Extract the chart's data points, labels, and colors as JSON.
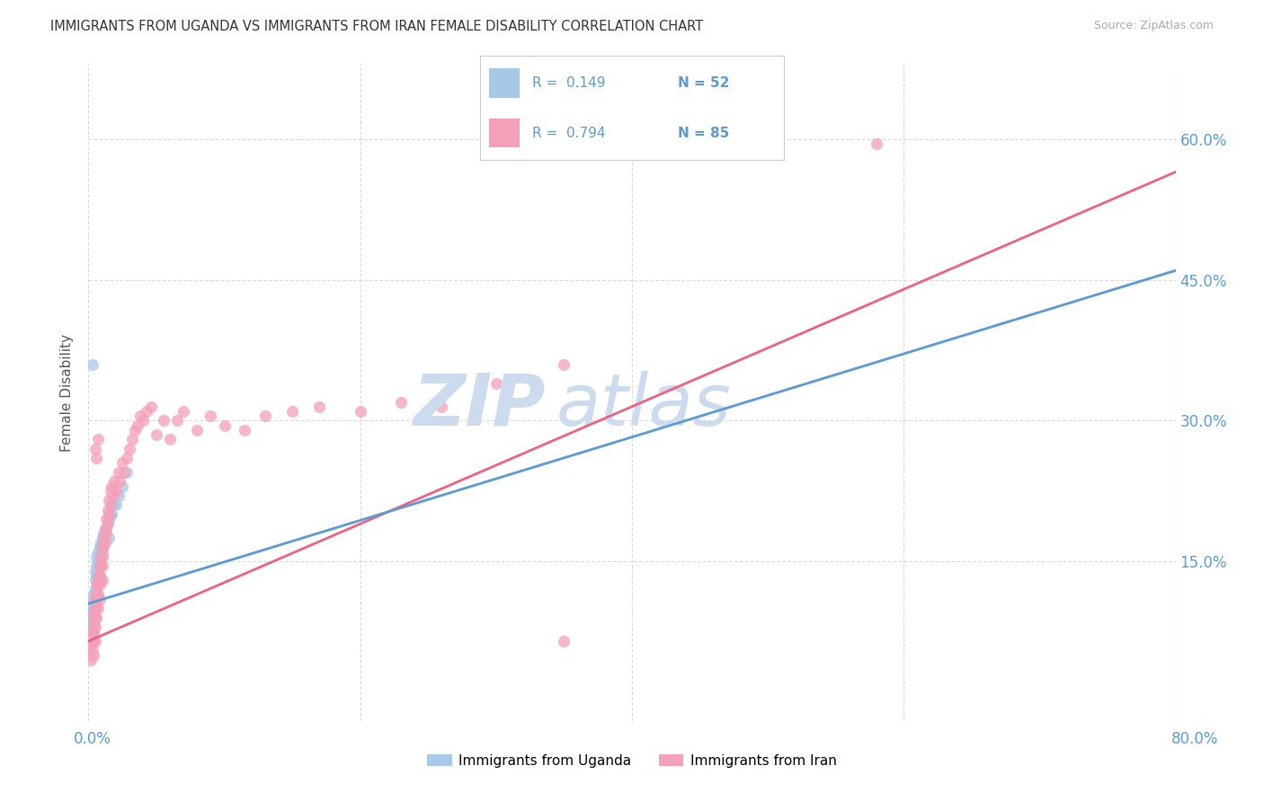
{
  "title": "IMMIGRANTS FROM UGANDA VS IMMIGRANTS FROM IRAN FEMALE DISABILITY CORRELATION CHART",
  "source": "Source: ZipAtlas.com",
  "ylabel": "Female Disability",
  "xlim": [
    0.0,
    0.8
  ],
  "ylim": [
    -0.02,
    0.68
  ],
  "ytick_labels": [
    "15.0%",
    "30.0%",
    "45.0%",
    "60.0%"
  ],
  "ytick_values": [
    0.15,
    0.3,
    0.45,
    0.6
  ],
  "uganda_color": "#a8c8e8",
  "iran_color": "#f4a0b8",
  "uganda_line_color": "#5b9bd5",
  "iran_line_color": "#f06080",
  "uganda_R": 0.149,
  "uganda_N": 52,
  "iran_R": 0.794,
  "iran_N": 85,
  "watermark_color": "#ccdcee",
  "background_color": "#ffffff",
  "grid_color": "#cccccc",
  "uganda_scatter_x": [
    0.001,
    0.001,
    0.002,
    0.002,
    0.002,
    0.003,
    0.003,
    0.003,
    0.003,
    0.004,
    0.004,
    0.004,
    0.004,
    0.004,
    0.005,
    0.005,
    0.005,
    0.005,
    0.005,
    0.005,
    0.006,
    0.006,
    0.006,
    0.006,
    0.007,
    0.007,
    0.007,
    0.007,
    0.008,
    0.008,
    0.008,
    0.008,
    0.009,
    0.009,
    0.01,
    0.01,
    0.01,
    0.011,
    0.011,
    0.012,
    0.013,
    0.014,
    0.015,
    0.016,
    0.017,
    0.018,
    0.02,
    0.022,
    0.025,
    0.028,
    0.003,
    0.015
  ],
  "uganda_scatter_y": [
    0.095,
    0.08,
    0.1,
    0.085,
    0.075,
    0.11,
    0.09,
    0.085,
    0.075,
    0.115,
    0.105,
    0.1,
    0.09,
    0.08,
    0.14,
    0.13,
    0.12,
    0.11,
    0.1,
    0.09,
    0.155,
    0.145,
    0.135,
    0.12,
    0.16,
    0.15,
    0.14,
    0.13,
    0.165,
    0.155,
    0.145,
    0.135,
    0.17,
    0.165,
    0.175,
    0.17,
    0.16,
    0.18,
    0.175,
    0.185,
    0.185,
    0.19,
    0.195,
    0.2,
    0.2,
    0.21,
    0.21,
    0.22,
    0.23,
    0.245,
    0.36,
    0.175
  ],
  "iran_scatter_x": [
    0.002,
    0.002,
    0.003,
    0.003,
    0.003,
    0.004,
    0.004,
    0.004,
    0.004,
    0.004,
    0.005,
    0.005,
    0.005,
    0.005,
    0.005,
    0.006,
    0.006,
    0.006,
    0.006,
    0.007,
    0.007,
    0.007,
    0.007,
    0.008,
    0.008,
    0.008,
    0.008,
    0.009,
    0.009,
    0.009,
    0.01,
    0.01,
    0.01,
    0.01,
    0.011,
    0.011,
    0.012,
    0.012,
    0.013,
    0.013,
    0.014,
    0.014,
    0.015,
    0.015,
    0.016,
    0.016,
    0.017,
    0.018,
    0.019,
    0.02,
    0.022,
    0.023,
    0.025,
    0.026,
    0.028,
    0.03,
    0.032,
    0.034,
    0.036,
    0.038,
    0.04,
    0.043,
    0.046,
    0.05,
    0.055,
    0.06,
    0.065,
    0.07,
    0.08,
    0.09,
    0.1,
    0.115,
    0.13,
    0.15,
    0.17,
    0.2,
    0.23,
    0.26,
    0.3,
    0.35,
    0.005,
    0.006,
    0.007,
    0.58,
    0.35
  ],
  "iran_scatter_y": [
    0.06,
    0.045,
    0.075,
    0.065,
    0.055,
    0.095,
    0.085,
    0.075,
    0.065,
    0.05,
    0.11,
    0.1,
    0.09,
    0.08,
    0.065,
    0.125,
    0.115,
    0.105,
    0.09,
    0.135,
    0.125,
    0.115,
    0.1,
    0.145,
    0.135,
    0.125,
    0.11,
    0.155,
    0.145,
    0.13,
    0.165,
    0.155,
    0.145,
    0.13,
    0.175,
    0.165,
    0.185,
    0.17,
    0.195,
    0.18,
    0.205,
    0.19,
    0.215,
    0.2,
    0.225,
    0.21,
    0.23,
    0.22,
    0.235,
    0.225,
    0.245,
    0.235,
    0.255,
    0.245,
    0.26,
    0.27,
    0.28,
    0.29,
    0.295,
    0.305,
    0.3,
    0.31,
    0.315,
    0.285,
    0.3,
    0.28,
    0.3,
    0.31,
    0.29,
    0.305,
    0.295,
    0.29,
    0.305,
    0.31,
    0.315,
    0.31,
    0.32,
    0.315,
    0.34,
    0.36,
    0.27,
    0.26,
    0.28,
    0.595,
    0.065
  ],
  "uganda_line_x": [
    0.0,
    0.8
  ],
  "uganda_line_y": [
    0.105,
    0.46
  ],
  "iran_line_x": [
    0.0,
    0.8
  ],
  "iran_line_y": [
    0.065,
    0.565
  ]
}
